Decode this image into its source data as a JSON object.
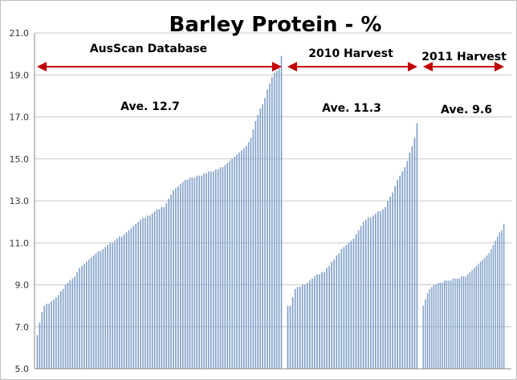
{
  "chart_data": {
    "type": "bar",
    "title": "Barley Protein - %",
    "xlabel": "",
    "ylabel": "",
    "ylim": [
      5.0,
      21.0
    ],
    "y_ticks": [
      "5.0",
      "7.0",
      "9.0",
      "11.0",
      "13.0",
      "15.0",
      "17.0",
      "19.0",
      "21.0"
    ],
    "grid": true,
    "bar_color": "#7f9fc8",
    "arrow_color": "#c00000",
    "groups": [
      {
        "label": "AusScan Database",
        "average_label": "Ave. 12.7",
        "values": [
          6.6,
          7.2,
          7.7,
          8.0,
          8.1,
          8.1,
          8.2,
          8.3,
          8.4,
          8.5,
          8.7,
          8.8,
          9.0,
          9.1,
          9.2,
          9.3,
          9.4,
          9.6,
          9.8,
          9.9,
          10.0,
          10.1,
          10.2,
          10.3,
          10.4,
          10.5,
          10.6,
          10.6,
          10.7,
          10.8,
          10.9,
          11.0,
          11.0,
          11.1,
          11.2,
          11.3,
          11.3,
          11.4,
          11.5,
          11.6,
          11.7,
          11.8,
          11.9,
          12.0,
          12.1,
          12.2,
          12.2,
          12.3,
          12.3,
          12.4,
          12.5,
          12.6,
          12.6,
          12.7,
          12.7,
          12.9,
          13.1,
          13.3,
          13.5,
          13.6,
          13.7,
          13.8,
          13.9,
          14.0,
          14.0,
          14.1,
          14.1,
          14.1,
          14.2,
          14.2,
          14.2,
          14.3,
          14.3,
          14.4,
          14.4,
          14.4,
          14.5,
          14.5,
          14.6,
          14.6,
          14.7,
          14.8,
          14.9,
          15.0,
          15.1,
          15.2,
          15.3,
          15.4,
          15.5,
          15.6,
          15.8,
          16.0,
          16.4,
          16.8,
          17.1,
          17.4,
          17.6,
          17.9,
          18.3,
          18.6,
          18.9,
          19.1,
          19.2,
          19.3,
          19.9
        ]
      },
      {
        "label": "2010 Harvest",
        "average_label": "Ave. 11.3",
        "values": [
          8.0,
          8.0,
          8.4,
          8.8,
          8.9,
          8.9,
          9.0,
          9.0,
          9.1,
          9.2,
          9.3,
          9.4,
          9.5,
          9.5,
          9.6,
          9.6,
          9.8,
          9.9,
          10.1,
          10.2,
          10.4,
          10.5,
          10.7,
          10.8,
          10.9,
          11.0,
          11.1,
          11.2,
          11.4,
          11.6,
          11.8,
          12.0,
          12.1,
          12.2,
          12.2,
          12.3,
          12.4,
          12.5,
          12.5,
          12.6,
          12.7,
          13.0,
          13.2,
          13.4,
          13.7,
          14.0,
          14.2,
          14.4,
          14.6,
          14.9,
          15.3,
          15.6,
          16.0,
          16.7
        ]
      },
      {
        "label": "2011 Harvest",
        "average_label": "Ave. 9.6",
        "values": [
          8.0,
          8.3,
          8.6,
          8.8,
          8.9,
          9.0,
          9.0,
          9.1,
          9.1,
          9.1,
          9.2,
          9.2,
          9.2,
          9.2,
          9.3,
          9.3,
          9.3,
          9.3,
          9.4,
          9.4,
          9.4,
          9.5,
          9.6,
          9.7,
          9.8,
          9.9,
          10.0,
          10.1,
          10.2,
          10.3,
          10.4,
          10.5,
          10.7,
          10.9,
          11.1,
          11.3,
          11.5,
          11.6,
          11.9
        ]
      }
    ]
  }
}
